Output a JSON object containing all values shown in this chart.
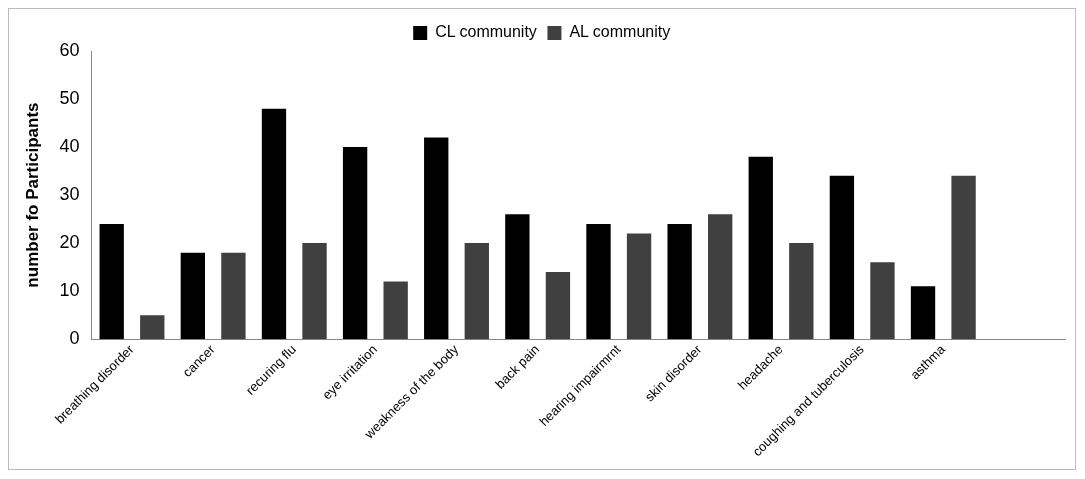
{
  "chart_data": {
    "type": "bar",
    "ylabel": "number fo Participants",
    "categories": [
      "breathing disorder",
      "cancer",
      "recuring flu",
      "eye irritation",
      "weakness of the body",
      "back pain",
      "hearing impairmrnt",
      "skin disorder",
      "headache",
      "coughing and tuberculosis",
      "asthma",
      null
    ],
    "series": [
      {
        "name": "CL community",
        "color": "#000000",
        "values": [
          24,
          18,
          48,
          40,
          42,
          26,
          24,
          24,
          38,
          34,
          11,
          null
        ]
      },
      {
        "name": "AL community",
        "color": "#404040",
        "values": [
          5,
          18,
          20,
          12,
          20,
          14,
          22,
          26,
          20,
          16,
          34,
          null
        ]
      }
    ],
    "ylim": [
      0,
      60
    ],
    "yticks": [
      0,
      10,
      20,
      30,
      40,
      50,
      60
    ],
    "grid": false,
    "legend": "top"
  }
}
